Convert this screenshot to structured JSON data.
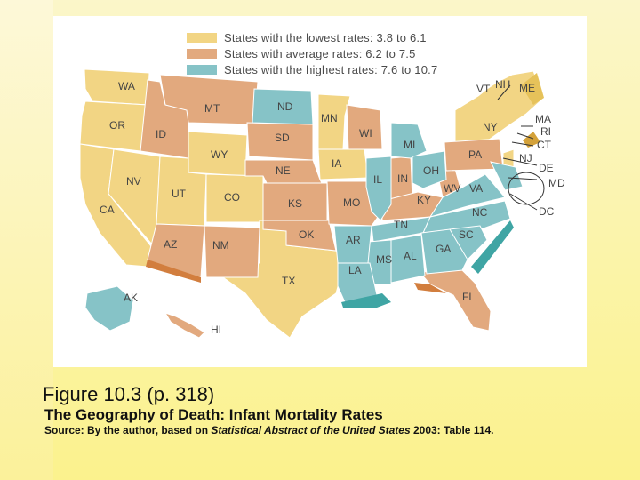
{
  "legend": [
    {
      "label": "States with the lowest rates: 3.8 to 6.1",
      "color": "#f2d584"
    },
    {
      "label": "States with average rates: 6.2 to 7.5",
      "color": "#e2a97e"
    },
    {
      "label": "States with the highest rates: 7.6 to 10.7",
      "color": "#86c3c7"
    }
  ],
  "states": {
    "WA": "WA",
    "OR": "OR",
    "CA": "CA",
    "NV": "NV",
    "ID": "ID",
    "MT": "MT",
    "WY": "WY",
    "UT": "UT",
    "CO": "CO",
    "AZ": "AZ",
    "NM": "NM",
    "ND": "ND",
    "SD": "SD",
    "NE": "NE",
    "KS": "KS",
    "OK": "OK",
    "TX": "TX",
    "MN": "MN",
    "IA": "IA",
    "MO": "MO",
    "AR": "AR",
    "LA": "LA",
    "WI": "WI",
    "IL": "IL",
    "MI": "MI",
    "IN": "IN",
    "OH": "OH",
    "KY": "KY",
    "TN": "TN",
    "MS": "MS",
    "AL": "AL",
    "GA": "GA",
    "FL": "FL",
    "SC": "SC",
    "NC": "NC",
    "VA": "VA",
    "WV": "WV",
    "PA": "PA",
    "NY": "NY",
    "VT": "VT",
    "NH": "NH",
    "ME": "ME",
    "MA": "MA",
    "RI": "RI",
    "CT": "CT",
    "NJ": "NJ",
    "DE": "DE",
    "MD": "MD",
    "DC": "DC",
    "AK": "AK",
    "HI": "HI"
  },
  "caption": {
    "title": "Figure 10.3  (p. 318)",
    "subtitle": "The Geography of Death: Infant Mortality Rates",
    "source_prefix": "Source: By the author, based on ",
    "source_italic": "Statistical Abstract of the United States",
    "source_suffix": " 2003: Table 114."
  }
}
